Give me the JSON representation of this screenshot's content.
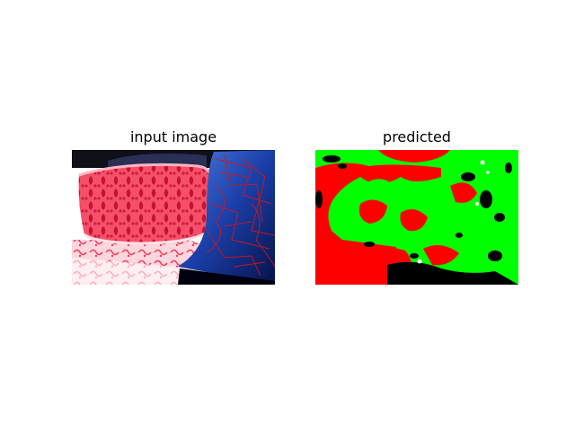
{
  "figure": {
    "left_panel": {
      "title": "input image",
      "content": "photograph of a patterned red sofa cushion next to a blue pillow with red line pattern"
    },
    "right_panel": {
      "title": "predicted",
      "content": "segmentation mask with green, red, black and white regions"
    },
    "colors": {
      "background": "#ffffff",
      "mask_green": "#00ff00",
      "mask_red": "#ff0000",
      "mask_black": "#000000",
      "mask_white": "#ffffff"
    }
  }
}
